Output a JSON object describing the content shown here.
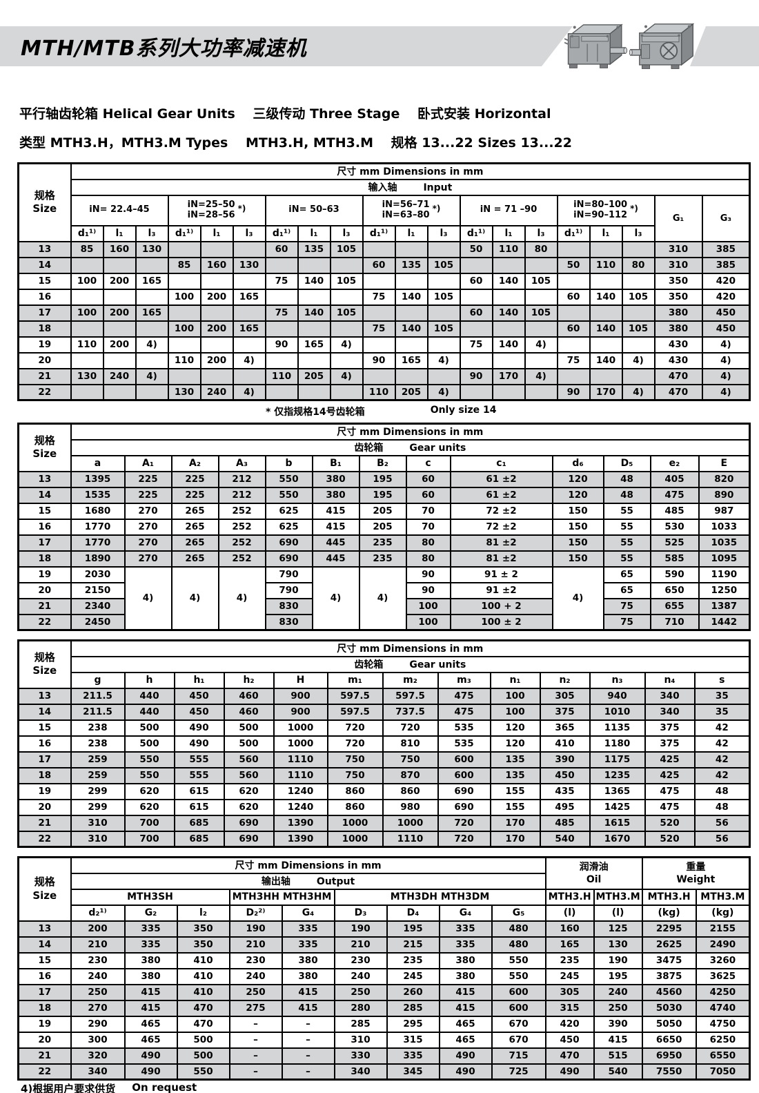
{
  "header": {
    "title": "MTH/MTB系列大功率减速机",
    "subtitle1": "平行轴齿轮箱 Helical Gear Units　 三级传动 Three Stage　 卧式安装 Horizontal",
    "subtitle2": "类型 MTH3.H，MTH3.M Types　 MTH3.H, MTH3.M　 规格 13...22 Sizes 13...22"
  },
  "labels": {
    "size_cn": "规格",
    "size_en": "Size",
    "dims": "尺寸 mm Dimensions in mm"
  },
  "colors": {
    "banner_gray": "#d6d7d8",
    "row_shade": "#d4d5d6",
    "border": "#000000"
  },
  "notes": {
    "mid_cn": "* 仅指规格14号齿轮箱",
    "mid_en": "Only size 14",
    "bottom_cn": "4)根据用户要求供货",
    "bottom_en": "On request"
  },
  "table1": {
    "section_cn": "输入轴",
    "section_en": "Input",
    "groups": [
      {
        "l1": "iN= 22.4–45"
      },
      {
        "l1": "iN=25–50",
        "l2": "iN=28–56",
        "star": "*)"
      },
      {
        "l1": "iN= 50–63"
      },
      {
        "l1": "iN=56–71",
        "l2": "iN=63–80",
        "star": "*)"
      },
      {
        "l1": "iN = 71 –90"
      },
      {
        "l1": "iN=80–100",
        "l2": "iN=90–112",
        "star": "*)"
      }
    ],
    "g1": "G₁",
    "g3": "G₃",
    "sub_cols": [
      "d₁¹⁾",
      "l₁",
      "l₃",
      "d₁¹⁾",
      "l₁",
      "l₃",
      "d₁¹⁾",
      "l₁",
      "l₃",
      "d₁¹⁾",
      "l₁",
      "l₃",
      "d₁¹⁾",
      "l₁",
      "l₃",
      "d₁¹⁾",
      "l₁",
      "l₃"
    ],
    "rows": [
      {
        "size": "13",
        "cells": [
          "85",
          "160",
          "130",
          "",
          "",
          "",
          "60",
          "135",
          "105",
          "",
          "",
          "",
          "50",
          "110",
          "80",
          "",
          "",
          "",
          "310",
          "385"
        ]
      },
      {
        "size": "14",
        "cells": [
          "",
          "",
          "",
          "85",
          "160",
          "130",
          "",
          "",
          "",
          "60",
          "135",
          "105",
          "",
          "",
          "",
          "50",
          "110",
          "80",
          "310",
          "385"
        ]
      },
      {
        "size": "15",
        "cells": [
          "100",
          "200",
          "165",
          "",
          "",
          "",
          "75",
          "140",
          "105",
          "",
          "",
          "",
          "60",
          "140",
          "105",
          "",
          "",
          "",
          "350",
          "420"
        ]
      },
      {
        "size": "16",
        "cells": [
          "",
          "",
          "",
          "100",
          "200",
          "165",
          "",
          "",
          "",
          "75",
          "140",
          "105",
          "",
          "",
          "",
          "60",
          "140",
          "105",
          "350",
          "420"
        ]
      },
      {
        "size": "17",
        "cells": [
          "100",
          "200",
          "165",
          "",
          "",
          "",
          "75",
          "140",
          "105",
          "",
          "",
          "",
          "60",
          "140",
          "105",
          "",
          "",
          "",
          "380",
          "450"
        ]
      },
      {
        "size": "18",
        "cells": [
          "",
          "",
          "",
          "100",
          "200",
          "165",
          "",
          "",
          "",
          "75",
          "140",
          "105",
          "",
          "",
          "",
          "60",
          "140",
          "105",
          "380",
          "450"
        ]
      },
      {
        "size": "19",
        "cells": [
          "110",
          "200",
          "4)",
          "",
          "",
          "",
          "90",
          "165",
          "4)",
          "",
          "",
          "",
          "75",
          "140",
          "4)",
          "",
          "",
          "",
          "430",
          "4)"
        ]
      },
      {
        "size": "20",
        "cells": [
          "",
          "",
          "",
          "110",
          "200",
          "4)",
          "",
          "",
          "",
          "90",
          "165",
          "4)",
          "",
          "",
          "",
          "75",
          "140",
          "4)",
          "430",
          "4)"
        ]
      },
      {
        "size": "21",
        "cells": [
          "130",
          "240",
          "4)",
          "",
          "",
          "",
          "110",
          "205",
          "4)",
          "",
          "",
          "",
          "90",
          "170",
          "4)",
          "",
          "",
          "",
          "470",
          "4)"
        ]
      },
      {
        "size": "22",
        "cells": [
          "",
          "",
          "",
          "130",
          "240",
          "4)",
          "",
          "",
          "",
          "110",
          "205",
          "4)",
          "",
          "",
          "",
          "90",
          "170",
          "4)",
          "470",
          "4)"
        ]
      }
    ]
  },
  "table2": {
    "section_cn": "齿轮箱",
    "section_en": "Gear units",
    "cols": [
      "a",
      "A₁",
      "A₂",
      "A₃",
      "b",
      "B₁",
      "B₂",
      "c",
      "c₁",
      "d₆",
      "D₅",
      "e₂",
      "E"
    ],
    "rows": [
      {
        "size": "13",
        "cells": [
          "1395",
          "225",
          "225",
          "212",
          "550",
          "380",
          "195",
          "60",
          "61 ±2",
          "120",
          "48",
          "405",
          "820"
        ]
      },
      {
        "size": "14",
        "cells": [
          "1535",
          "225",
          "225",
          "212",
          "550",
          "380",
          "195",
          "60",
          "61 ±2",
          "120",
          "48",
          "475",
          "890"
        ]
      },
      {
        "size": "15",
        "cells": [
          "1680",
          "270",
          "265",
          "252",
          "625",
          "415",
          "205",
          "70",
          "72 ±2",
          "150",
          "55",
          "485",
          "987"
        ]
      },
      {
        "size": "16",
        "cells": [
          "1770",
          "270",
          "265",
          "252",
          "625",
          "415",
          "205",
          "70",
          "72 ±2",
          "150",
          "55",
          "530",
          "1033"
        ]
      },
      {
        "size": "17",
        "cells": [
          "1770",
          "270",
          "265",
          "252",
          "690",
          "445",
          "235",
          "80",
          "81 ±2",
          "150",
          "55",
          "525",
          "1035"
        ]
      },
      {
        "size": "18",
        "cells": [
          "1890",
          "270",
          "265",
          "252",
          "690",
          "445",
          "235",
          "80",
          "81 ±2",
          "150",
          "55",
          "585",
          "1095"
        ]
      },
      {
        "size": "19",
        "cells": [
          "2030",
          {
            "t": "4)",
            "rs": 4,
            "cls": "merge"
          },
          {
            "t": "4)",
            "rs": 4,
            "cls": "merge"
          },
          {
            "t": "4)",
            "rs": 4,
            "cls": "merge"
          },
          "790",
          {
            "t": "4)",
            "rs": 4,
            "cls": "merge"
          },
          {
            "t": "4)",
            "rs": 4,
            "cls": "merge"
          },
          "90",
          "91 ± 2",
          {
            "t": "4)",
            "rs": 4,
            "cls": "merge"
          },
          "65",
          "590",
          "1190"
        ]
      },
      {
        "size": "20",
        "cells": [
          "2150",
          null,
          null,
          null,
          "790",
          null,
          null,
          "90",
          "91 ±2",
          null,
          "65",
          "650",
          "1250"
        ]
      },
      {
        "size": "21",
        "cells": [
          "2340",
          null,
          null,
          null,
          "830",
          null,
          null,
          "100",
          "100 + 2",
          null,
          "75",
          "655",
          "1387"
        ]
      },
      {
        "size": "22",
        "cells": [
          "2450",
          null,
          null,
          null,
          "830",
          null,
          null,
          "100",
          "100 ± 2",
          null,
          "75",
          "710",
          "1442"
        ]
      }
    ]
  },
  "table3": {
    "section_cn": "齿轮箱",
    "section_en": "Gear units",
    "cols": [
      "g",
      "h",
      "h₁",
      "h₂",
      "H",
      "m₁",
      "m₂",
      "m₃",
      "n₁",
      "n₂",
      "n₃",
      "n₄",
      "s"
    ],
    "rows": [
      {
        "size": "13",
        "cells": [
          "211.5",
          "440",
          "450",
          "460",
          "900",
          "597.5",
          "597.5",
          "475",
          "100",
          "305",
          "940",
          "340",
          "35"
        ]
      },
      {
        "size": "14",
        "cells": [
          "211.5",
          "440",
          "450",
          "460",
          "900",
          "597.5",
          "737.5",
          "475",
          "100",
          "375",
          "1010",
          "340",
          "35"
        ]
      },
      {
        "size": "15",
        "cells": [
          "238",
          "500",
          "490",
          "500",
          "1000",
          "720",
          "720",
          "535",
          "120",
          "365",
          "1135",
          "375",
          "42"
        ]
      },
      {
        "size": "16",
        "cells": [
          "238",
          "500",
          "490",
          "500",
          "1000",
          "720",
          "810",
          "535",
          "120",
          "410",
          "1180",
          "375",
          "42"
        ]
      },
      {
        "size": "17",
        "cells": [
          "259",
          "550",
          "555",
          "560",
          "1110",
          "750",
          "750",
          "600",
          "135",
          "390",
          "1175",
          "425",
          "42"
        ]
      },
      {
        "size": "18",
        "cells": [
          "259",
          "550",
          "555",
          "560",
          "1110",
          "750",
          "870",
          "600",
          "135",
          "450",
          "1235",
          "425",
          "42"
        ]
      },
      {
        "size": "19",
        "cells": [
          "299",
          "620",
          "615",
          "620",
          "1240",
          "860",
          "860",
          "690",
          "155",
          "435",
          "1365",
          "475",
          "48"
        ]
      },
      {
        "size": "20",
        "cells": [
          "299",
          "620",
          "615",
          "620",
          "1240",
          "860",
          "980",
          "690",
          "155",
          "495",
          "1425",
          "475",
          "48"
        ]
      },
      {
        "size": "21",
        "cells": [
          "310",
          "700",
          "685",
          "690",
          "1390",
          "1000",
          "1000",
          "720",
          "170",
          "485",
          "1615",
          "520",
          "56"
        ]
      },
      {
        "size": "22",
        "cells": [
          "310",
          "700",
          "685",
          "690",
          "1390",
          "1000",
          "1110",
          "720",
          "170",
          "540",
          "1670",
          "520",
          "56"
        ]
      }
    ]
  },
  "table4": {
    "section_cn": "输出轴",
    "section_en": "Output",
    "oil_cn": "润滑油",
    "oil_en": "Oil",
    "weight_cn": "重量",
    "weight_en": "Weight",
    "models": [
      "MTH3SH",
      "MTH3HH MTH3HM",
      "MTH3DH MTH3DM",
      "MTH3.H",
      "MTH3.M",
      "MTH3.H",
      "MTH3.M"
    ],
    "cols": [
      "d₂¹⁾",
      "G₂",
      "l₂",
      "D₂²⁾",
      "G₄",
      "D₃",
      "D₄",
      "G₄",
      "G₅",
      "(l)",
      "(l)",
      "(kg)",
      "(kg)"
    ],
    "rows": [
      {
        "size": "13",
        "cells": [
          "200",
          "335",
          "350",
          "190",
          "335",
          "190",
          "195",
          "335",
          "480",
          "160",
          "125",
          "2295",
          "2155"
        ]
      },
      {
        "size": "14",
        "cells": [
          "210",
          "335",
          "350",
          "210",
          "335",
          "210",
          "215",
          "335",
          "480",
          "165",
          "130",
          "2625",
          "2490"
        ]
      },
      {
        "size": "15",
        "cells": [
          "230",
          "380",
          "410",
          "230",
          "380",
          "230",
          "235",
          "380",
          "550",
          "235",
          "190",
          "3475",
          "3260"
        ]
      },
      {
        "size": "16",
        "cells": [
          "240",
          "380",
          "410",
          "240",
          "380",
          "240",
          "245",
          "380",
          "550",
          "245",
          "195",
          "3875",
          "3625"
        ]
      },
      {
        "size": "17",
        "cells": [
          "250",
          "415",
          "410",
          "250",
          "415",
          "250",
          "260",
          "415",
          "600",
          "305",
          "240",
          "4560",
          "4250"
        ]
      },
      {
        "size": "18",
        "cells": [
          "270",
          "415",
          "470",
          "275",
          "415",
          "280",
          "285",
          "415",
          "600",
          "315",
          "250",
          "5030",
          "4740"
        ]
      },
      {
        "size": "19",
        "cells": [
          "290",
          "465",
          "470",
          "–",
          "–",
          "285",
          "295",
          "465",
          "670",
          "420",
          "390",
          "5050",
          "4750"
        ]
      },
      {
        "size": "20",
        "cells": [
          "300",
          "465",
          "500",
          "–",
          "–",
          "310",
          "315",
          "465",
          "670",
          "450",
          "415",
          "6650",
          "6250"
        ]
      },
      {
        "size": "21",
        "cells": [
          "320",
          "490",
          "500",
          "–",
          "–",
          "330",
          "335",
          "490",
          "715",
          "470",
          "515",
          "6950",
          "6550"
        ]
      },
      {
        "size": "22",
        "cells": [
          "340",
          "490",
          "550",
          "–",
          "–",
          "340",
          "345",
          "490",
          "725",
          "490",
          "540",
          "7550",
          "7050"
        ]
      }
    ]
  }
}
